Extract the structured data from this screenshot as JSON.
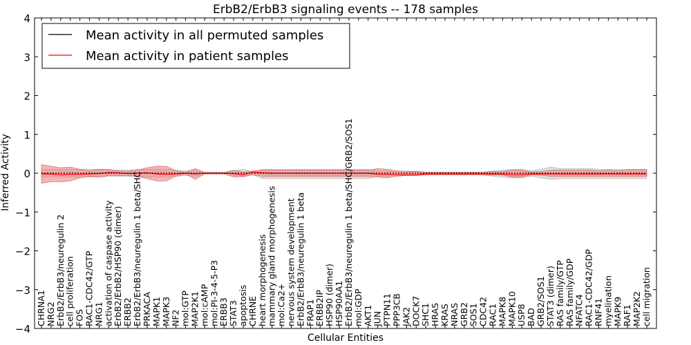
{
  "chart_data": {
    "type": "line",
    "title": "ErbB2/ErbB3 signaling events -- 178 samples",
    "xlabel": "Cellular Entities",
    "ylabel": "Inferred Activity",
    "ylim": [
      -4,
      4
    ],
    "yticks": [
      "−4",
      "−3",
      "−2",
      "−1",
      "0",
      "1",
      "2",
      "3",
      "4"
    ],
    "grid": false,
    "legend_position": "top-left",
    "colors": {
      "permuted": "#000000",
      "patient": "#ff0000",
      "patient_band": "#f08080",
      "permuted_band": "#c8c8c8"
    },
    "categories": [
      "CHRNA1",
      "NRG2",
      "ErbB2/ErbB3/neuregulin 2",
      "cell proliferation",
      "FOS",
      "RAC1-CDC42/GTP",
      "NRG1",
      "activation of caspase activity",
      "ErbB2/ErbB2/HSP90 (dimer)",
      "ERBB2",
      "ErbB2/ErbB3/neuregulin 1 beta/SHC",
      "PRKACA",
      "MAPK1",
      "MAPK3",
      "NF2",
      "mol:GTP",
      "MAP2K1",
      "mol:cAMP",
      "mol:PI-3-4-5-P3",
      "ERBB3",
      "STAT3",
      "apoptosis",
      "CHRNE",
      "heart morphogenesis",
      "mammary gland morphogenesis",
      "mol:Ca2+",
      "nervous system development",
      "ErbB2/ErbB3/neuregulin 1 beta",
      "FRAP1",
      "ERBB2IP",
      "HSP90 (dimer)",
      "HSP90AA1",
      "ErbB2/ErbB3/neuregulin 1 beta/SHC/GRB2/SOS1",
      "mol:GDP",
      "AKT1",
      "JUN",
      "PTPN11",
      "PPP3CB",
      "JAK2",
      "DOCK7",
      "SHC1",
      "HRAS",
      "KRAS",
      "NRAS",
      "GRB2",
      "SOS1",
      "CDC42",
      "RAC1",
      "MAPK8",
      "MAPK10",
      "USP8",
      "BAD",
      "GRB2/SOS1",
      "STAT3 (dimer)",
      "RAS family/GTP",
      "RAS family/GDP",
      "NFATC4",
      "RAC1-CDC42/GDP",
      "RNF41",
      "myelination",
      "MAPK9",
      "RAF1",
      "MAP2K2",
      "cell migration"
    ],
    "series": [
      {
        "name": "Mean activity in all permuted samples",
        "values": [
          0.0,
          0.0,
          0.0,
          0.0,
          0.0,
          0.0,
          0.0,
          0.0,
          0.0,
          0.0,
          0.0,
          0.0,
          0.0,
          0.0,
          0.0,
          0.0,
          0.0,
          0.0,
          0.0,
          0.0,
          0.0,
          0.0,
          0.0,
          0.0,
          0.0,
          0.0,
          0.0,
          0.0,
          0.0,
          0.0,
          0.0,
          0.0,
          0.0,
          0.0,
          0.0,
          0.0,
          0.0,
          0.0,
          0.0,
          0.0,
          0.0,
          0.0,
          0.0,
          0.0,
          0.0,
          0.0,
          0.0,
          0.0,
          0.0,
          0.0,
          0.0,
          0.0,
          0.0,
          0.0,
          0.0,
          0.0,
          0.0,
          0.0,
          0.0,
          0.0,
          0.0,
          0.0,
          0.0,
          0.0
        ]
      },
      {
        "name": "Mean activity in patient samples",
        "values": [
          -0.02,
          -0.02,
          -0.04,
          -0.03,
          -0.03,
          -0.02,
          -0.01,
          0.02,
          0.01,
          -0.01,
          0.0,
          0.01,
          -0.02,
          -0.03,
          -0.02,
          0.0,
          -0.02,
          0.0,
          0.0,
          0.0,
          -0.01,
          -0.04,
          0.03,
          0.01,
          0.0,
          0.0,
          0.0,
          0.0,
          0.0,
          0.0,
          0.0,
          0.0,
          0.0,
          0.0,
          0.0,
          -0.03,
          -0.03,
          -0.04,
          -0.04,
          -0.04,
          -0.02,
          -0.02,
          -0.02,
          -0.02,
          -0.02,
          -0.02,
          -0.02,
          -0.02,
          -0.02,
          -0.04,
          -0.04,
          -0.02,
          -0.02,
          -0.02,
          -0.02,
          -0.02,
          -0.02,
          -0.02,
          -0.02,
          -0.02,
          -0.02,
          -0.02,
          -0.02,
          -0.02
        ]
      }
    ],
    "patient_band_upper": [
      0.22,
      0.18,
      0.14,
      0.16,
      0.1,
      0.06,
      0.1,
      0.1,
      0.06,
      0.05,
      0.08,
      0.14,
      0.18,
      0.18,
      0.06,
      0.02,
      0.12,
      0.02,
      0.02,
      0.02,
      0.08,
      0.03,
      0.06,
      0.08,
      0.08,
      0.08,
      0.08,
      0.08,
      0.08,
      0.08,
      0.08,
      0.08,
      0.08,
      0.08,
      0.08,
      0.12,
      0.1,
      0.06,
      0.05,
      0.05,
      0.03,
      0.03,
      0.03,
      0.03,
      0.03,
      0.03,
      0.03,
      0.04,
      0.04,
      0.08,
      0.08,
      0.03,
      0.04,
      0.08,
      0.08,
      0.08,
      0.08,
      0.08,
      0.06,
      0.08,
      0.06,
      0.1,
      0.1,
      0.1
    ],
    "patient_band_lower": [
      -0.26,
      -0.22,
      -0.22,
      -0.2,
      -0.12,
      -0.08,
      -0.1,
      -0.06,
      -0.06,
      -0.06,
      -0.08,
      -0.14,
      -0.2,
      -0.2,
      -0.08,
      -0.02,
      -0.16,
      -0.02,
      -0.02,
      -0.02,
      -0.1,
      -0.08,
      -0.04,
      -0.08,
      -0.08,
      -0.08,
      -0.08,
      -0.08,
      -0.08,
      -0.08,
      -0.08,
      -0.08,
      -0.08,
      -0.08,
      -0.08,
      -0.1,
      -0.12,
      -0.08,
      -0.06,
      -0.06,
      -0.04,
      -0.04,
      -0.04,
      -0.04,
      -0.04,
      -0.04,
      -0.04,
      -0.05,
      -0.05,
      -0.1,
      -0.1,
      -0.04,
      -0.05,
      -0.08,
      -0.08,
      -0.08,
      -0.08,
      -0.08,
      -0.08,
      -0.08,
      -0.08,
      -0.08,
      -0.08,
      -0.08
    ],
    "permuted_band_upper": [
      0.1,
      0.1,
      0.1,
      0.1,
      0.1,
      0.1,
      0.1,
      0.08,
      0.08,
      0.08,
      0.1,
      0.1,
      0.1,
      0.1,
      0.08,
      0.06,
      0.08,
      0.02,
      0.02,
      0.02,
      0.06,
      0.1,
      0.04,
      0.1,
      0.1,
      0.1,
      0.1,
      0.1,
      0.1,
      0.1,
      0.1,
      0.1,
      0.1,
      0.1,
      0.1,
      0.06,
      0.06,
      0.04,
      0.04,
      0.04,
      0.03,
      0.03,
      0.03,
      0.03,
      0.03,
      0.03,
      0.03,
      0.06,
      0.08,
      0.1,
      0.1,
      0.06,
      0.1,
      0.16,
      0.12,
      0.12,
      0.12,
      0.12,
      0.1,
      0.1,
      0.1,
      0.08,
      0.08,
      0.08
    ],
    "permuted_band_lower": [
      -0.1,
      -0.1,
      -0.1,
      -0.1,
      -0.1,
      -0.1,
      -0.1,
      -0.08,
      -0.08,
      -0.08,
      -0.1,
      -0.1,
      -0.1,
      -0.1,
      -0.08,
      -0.06,
      -0.08,
      -0.02,
      -0.02,
      -0.02,
      -0.06,
      -0.1,
      -0.04,
      -0.14,
      -0.14,
      -0.14,
      -0.14,
      -0.14,
      -0.14,
      -0.14,
      -0.14,
      -0.14,
      -0.14,
      -0.14,
      -0.14,
      -0.08,
      -0.08,
      -0.06,
      -0.06,
      -0.06,
      -0.04,
      -0.04,
      -0.04,
      -0.04,
      -0.04,
      -0.04,
      -0.04,
      -0.08,
      -0.1,
      -0.12,
      -0.12,
      -0.08,
      -0.12,
      -0.16,
      -0.14,
      -0.14,
      -0.14,
      -0.14,
      -0.14,
      -0.14,
      -0.14,
      -0.14,
      -0.14,
      -0.14
    ]
  }
}
